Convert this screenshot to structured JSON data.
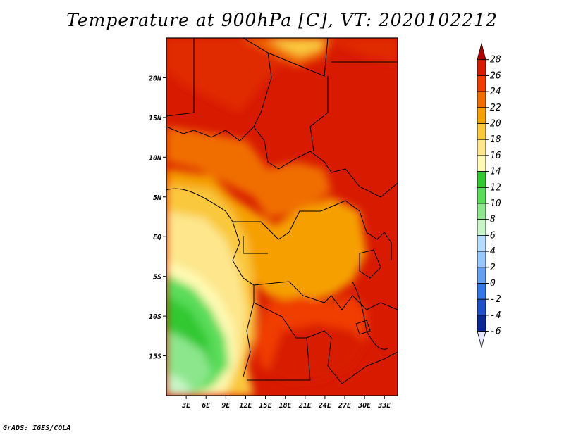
{
  "title": "Temperature at 900hPa [C], VT: 2020102212",
  "credit": "GrADS: IGES/COLA",
  "map": {
    "lon_range": [
      0,
      35
    ],
    "lat_range": [
      -20,
      25
    ],
    "x_ticks": [
      "3E",
      "6E",
      "9E",
      "12E",
      "15E",
      "18E",
      "21E",
      "24E",
      "27E",
      "30E",
      "33E"
    ],
    "x_tick_values": [
      3,
      6,
      9,
      12,
      15,
      18,
      21,
      24,
      27,
      30,
      33
    ],
    "y_ticks": [
      "20N",
      "15N",
      "10N",
      "5N",
      "EQ",
      "5S",
      "10S",
      "15S"
    ],
    "y_tick_values": [
      20,
      15,
      10,
      5,
      0,
      -5,
      -10,
      -15
    ]
  },
  "colorbar": {
    "labels": [
      "28",
      "26",
      "24",
      "22",
      "20",
      "18",
      "16",
      "14",
      "12",
      "10",
      "8",
      "6",
      "4",
      "2",
      "0",
      "-2",
      "-4",
      "-6"
    ],
    "colors": [
      "#b00000",
      "#d81a00",
      "#f03c00",
      "#f06e00",
      "#f5a000",
      "#fac83c",
      "#fde68c",
      "#fefab4",
      "#32c832",
      "#5adc5a",
      "#8ce68c",
      "#c8f5c8",
      "#b4dcff",
      "#96c8ff",
      "#64a0f0",
      "#3278e6",
      "#1e50c8",
      "#0a2896",
      "#000064",
      "#e6e6ff"
    ]
  }
}
